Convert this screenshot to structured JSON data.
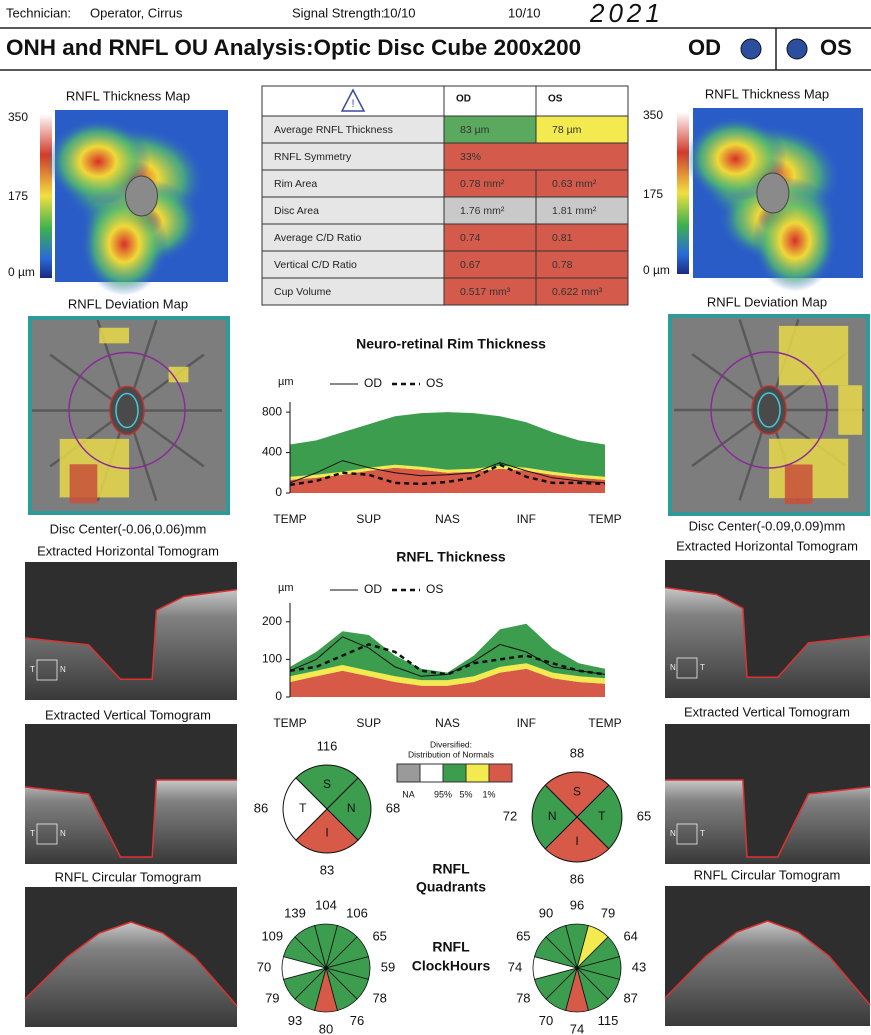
{
  "header": {
    "technician_label": "Technician:",
    "technician": "Operator, Cirrus",
    "signal_label": "Signal Strength:",
    "signal_od": "10/10",
    "signal_os": "10/10",
    "handwritten": "2021"
  },
  "title": {
    "text": "ONH and RNFL OU Analysis:Optic Disc Cube 200x200",
    "od": "OD",
    "os": "OS",
    "eye_color": "#2b4f9e"
  },
  "od_panel": {
    "thickness_map": "RNFL Thickness Map",
    "scale": [
      "350",
      "175",
      "0 µm"
    ],
    "deviation_map": "RNFL Deviation Map",
    "disc_center": "Disc Center(-0.06,0.06)mm",
    "horizontal": "Extracted Horizontal Tomogram",
    "h_marker": [
      "T",
      "N"
    ],
    "vertical": "Extracted Vertical Tomogram",
    "v_marker": [
      "T",
      "N"
    ],
    "circular": "RNFL Circular Tomogram"
  },
  "os_panel": {
    "thickness_map": "RNFL Thickness Map",
    "scale": [
      "350",
      "175",
      "0 µm"
    ],
    "deviation_map": "RNFL Deviation Map",
    "disc_center": "Disc Center(-0.09,0.09)mm",
    "horizontal": "Extracted Horizontal Tomogram",
    "h_marker": [
      "N",
      "T"
    ],
    "vertical": "Extracted Vertical Tomogram",
    "v_marker": [
      "N",
      "T"
    ],
    "circular": "RNFL Circular Tomogram"
  },
  "table": {
    "columns": [
      "OD",
      "OS"
    ],
    "rows": [
      {
        "label": "Average RNFL Thickness",
        "cells": [
          {
            "text": "83 µm",
            "color": "#5aa95e"
          },
          {
            "text": "78 µm",
            "color": "#f2ea4e"
          }
        ]
      },
      {
        "label": "RNFL Symmetry",
        "cells": [
          {
            "text": "33%",
            "color": "#d45a4b"
          }
        ]
      },
      {
        "label": "Rim Area",
        "cells": [
          {
            "text": "0.78 mm²",
            "color": "#d45a4b"
          },
          {
            "text": "0.63 mm²",
            "color": "#d45a4b"
          }
        ]
      },
      {
        "label": "Disc Area",
        "cells": [
          {
            "text": "1.76 mm²",
            "color": "#c9c9c9"
          },
          {
            "text": "1.81 mm²",
            "color": "#c9c9c9"
          }
        ]
      },
      {
        "label": "Average C/D Ratio",
        "cells": [
          {
            "text": "0.74",
            "color": "#d45a4b"
          },
          {
            "text": "0.81",
            "color": "#d45a4b"
          }
        ]
      },
      {
        "label": "Vertical C/D Ratio",
        "cells": [
          {
            "text": "0.67",
            "color": "#d45a4b"
          },
          {
            "text": "0.78",
            "color": "#d45a4b"
          }
        ]
      },
      {
        "label": "Cup Volume",
        "cells": [
          {
            "text": "0.517 mm³",
            "color": "#d45a4b"
          },
          {
            "text": "0.622 mm³",
            "color": "#d45a4b"
          }
        ]
      }
    ]
  },
  "charts": [
    {
      "type": "line",
      "title": "Neuro-retinal Rim Thickness",
      "unit": "µm",
      "categories": [
        "TEMP",
        "SUP",
        "NAS",
        "INF",
        "TEMP"
      ],
      "ylim": [
        0,
        900
      ],
      "yticks": [
        0,
        400,
        800
      ],
      "bands": [
        {
          "color": "#d75a48",
          "values": [
            130,
            150,
            180,
            220,
            250,
            230,
            200,
            210,
            240,
            220,
            180,
            150,
            130
          ]
        },
        {
          "color": "#f2ea4e",
          "values": [
            30,
            30,
            30,
            30,
            30,
            30,
            30,
            30,
            30,
            30,
            30,
            30,
            30
          ]
        },
        {
          "color": "#3c9d4f",
          "values": [
            320,
            340,
            390,
            430,
            480,
            530,
            570,
            550,
            490,
            450,
            390,
            340,
            320
          ]
        }
      ],
      "series": [
        {
          "name": "OD",
          "style": "solid",
          "values": [
            100,
            200,
            320,
            250,
            200,
            170,
            180,
            200,
            300,
            220,
            150,
            120,
            100
          ]
        },
        {
          "name": "OS",
          "style": "dashed",
          "values": [
            80,
            120,
            200,
            180,
            100,
            90,
            110,
            150,
            280,
            160,
            100,
            100,
            90
          ]
        }
      ]
    },
    {
      "type": "line",
      "title": "RNFL Thickness",
      "unit": "µm",
      "categories": [
        "TEMP",
        "SUP",
        "NAS",
        "INF",
        "TEMP"
      ],
      "ylim": [
        0,
        250
      ],
      "yticks": [
        0,
        100,
        200
      ],
      "bands": [
        {
          "color": "#d75a48",
          "values": [
            40,
            55,
            70,
            55,
            40,
            30,
            30,
            40,
            65,
            75,
            50,
            40,
            35
          ]
        },
        {
          "color": "#f2ea4e",
          "values": [
            15,
            15,
            15,
            15,
            15,
            15,
            15,
            15,
            15,
            15,
            15,
            15,
            15
          ]
        },
        {
          "color": "#3c9d4f",
          "values": [
            25,
            50,
            90,
            95,
            55,
            30,
            20,
            55,
            100,
            105,
            65,
            35,
            25
          ]
        }
      ],
      "series": [
        {
          "name": "OD",
          "style": "solid",
          "values": [
            70,
            100,
            160,
            130,
            80,
            55,
            60,
            95,
            140,
            120,
            80,
            70,
            60
          ]
        },
        {
          "name": "OS",
          "style": "dashed",
          "values": [
            70,
            80,
            110,
            140,
            120,
            70,
            60,
            90,
            100,
            110,
            90,
            70,
            60
          ]
        }
      ]
    }
  ],
  "normals": {
    "title": [
      "Diversified:",
      "Distribution of Normals"
    ],
    "colors": [
      "#9a9a9a",
      "#ffffff",
      "#3c9d4f",
      "#f2ea4e",
      "#d75a48"
    ],
    "labels": [
      "NA",
      "95%",
      "5%",
      "1%"
    ]
  },
  "quadrants_title": [
    "RNFL",
    "Quadrants"
  ],
  "clock_title": [
    "RNFL",
    "ClockHours"
  ],
  "quadrants": {
    "od": [
      {
        "label": "S",
        "value": 116,
        "color": "#3c9d4f"
      },
      {
        "label": "N",
        "value": 68,
        "color": "#3c9d4f"
      },
      {
        "label": "I",
        "value": 83,
        "color": "#d75a48"
      },
      {
        "label": "T",
        "value": 86,
        "color": "#ffffff"
      }
    ],
    "os": [
      {
        "label": "S",
        "value": 88,
        "color": "#d75a48"
      },
      {
        "label": "T",
        "value": 65,
        "color": "#3c9d4f"
      },
      {
        "label": "I",
        "value": 86,
        "color": "#d75a48"
      },
      {
        "label": "N",
        "value": 72,
        "color": "#3c9d4f"
      }
    ]
  },
  "clock_hours": {
    "od": [
      {
        "value": 104,
        "color": "#3c9d4f"
      },
      {
        "value": 106,
        "color": "#3c9d4f"
      },
      {
        "value": 65,
        "color": "#3c9d4f"
      },
      {
        "value": 59,
        "color": "#3c9d4f"
      },
      {
        "value": 78,
        "color": "#3c9d4f"
      },
      {
        "value": 76,
        "color": "#3c9d4f"
      },
      {
        "value": 80,
        "color": "#d75a48"
      },
      {
        "value": 93,
        "color": "#3c9d4f"
      },
      {
        "value": 79,
        "color": "#3c9d4f"
      },
      {
        "value": 70,
        "color": "#ffffff"
      },
      {
        "value": 109,
        "color": "#3c9d4f"
      },
      {
        "value": 139,
        "color": "#3c9d4f"
      }
    ],
    "os": [
      {
        "value": 96,
        "color": "#3c9d4f"
      },
      {
        "value": 79,
        "color": "#f2ea4e"
      },
      {
        "value": 64,
        "color": "#3c9d4f"
      },
      {
        "value": 43,
        "color": "#3c9d4f"
      },
      {
        "value": 87,
        "color": "#3c9d4f"
      },
      {
        "value": 115,
        "color": "#3c9d4f"
      },
      {
        "value": 74,
        "color": "#d75a48"
      },
      {
        "value": 70,
        "color": "#3c9d4f"
      },
      {
        "value": 78,
        "color": "#3c9d4f"
      },
      {
        "value": 74,
        "color": "#ffffff"
      },
      {
        "value": 65,
        "color": "#3c9d4f"
      },
      {
        "value": 90,
        "color": "#3c9d4f"
      }
    ]
  }
}
